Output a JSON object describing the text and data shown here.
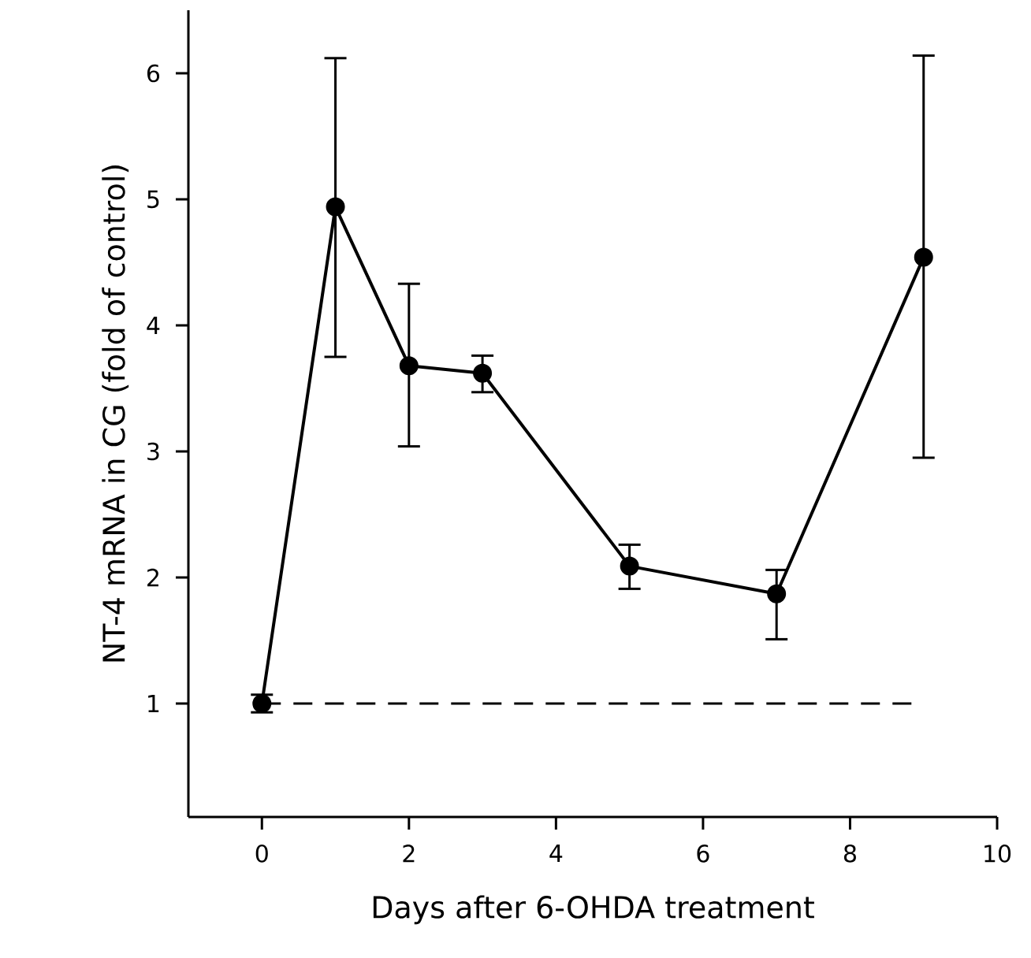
{
  "chart_data": {
    "type": "line",
    "xlabel": "Days after 6-OHDA treatment",
    "ylabel": "NT-4 mRNA in CG (fold of control)",
    "x": [
      0,
      1,
      2,
      3,
      5,
      7,
      9
    ],
    "values": [
      1.0,
      4.94,
      3.68,
      3.62,
      2.09,
      1.87,
      4.54
    ],
    "errors": [
      [
        0.93,
        1.07
      ],
      [
        3.75,
        6.12
      ],
      [
        3.04,
        4.33
      ],
      [
        3.47,
        3.76
      ],
      [
        1.91,
        2.26
      ],
      [
        1.51,
        2.06
      ],
      [
        2.95,
        6.14
      ]
    ],
    "color": "#000000",
    "marker": "circle",
    "line_style": "solid",
    "grid": false,
    "xlim": [
      -1,
      10
    ],
    "ylim": [
      0.1,
      6.5
    ],
    "xticks": [
      0,
      2,
      4,
      6,
      8,
      10
    ],
    "yticks": [
      1,
      2,
      3,
      4,
      5,
      6
    ],
    "ref_lines": [
      {
        "axis": "y",
        "value": 1,
        "line_style": "dashed",
        "color": "#000000"
      }
    ]
  }
}
